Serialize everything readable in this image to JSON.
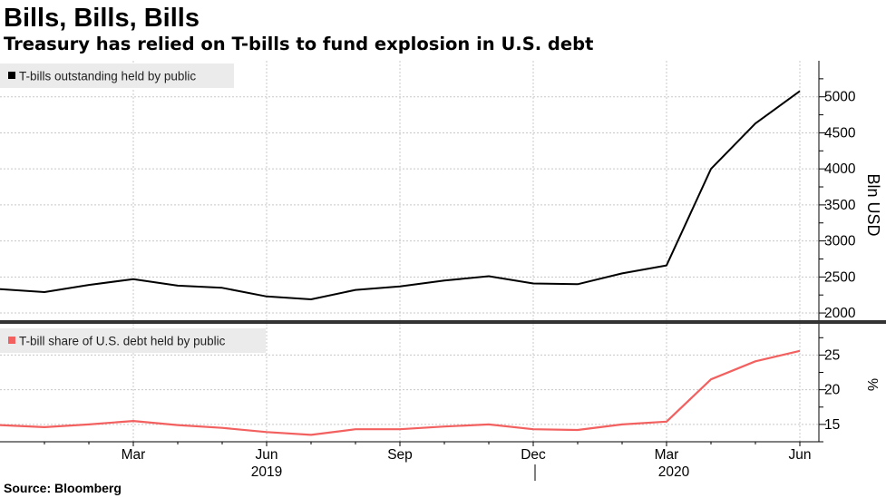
{
  "title": "Bills, Bills, Bills",
  "subtitle": "Treasury has relied on T-bills to fund explosion in U.S. debt",
  "source": "Source: Bloomberg",
  "x_ticks": [
    "Mar",
    "Jun",
    "Sep",
    "Dec",
    "Mar",
    "Jun"
  ],
  "x_years": [
    "2019",
    "2020"
  ],
  "chart_data": [
    {
      "type": "line",
      "legend": "T-bills outstanding held by public",
      "color": "#000000",
      "ylabel": "Bln USD",
      "ylim": [
        1900,
        5500
      ],
      "yticks": [
        2000,
        2500,
        3000,
        3500,
        4000,
        4500,
        5000
      ],
      "grid": true,
      "legend_position": "top-left",
      "x": [
        "2018-12",
        "2019-01",
        "2019-02",
        "2019-03",
        "2019-04",
        "2019-05",
        "2019-06",
        "2019-07",
        "2019-08",
        "2019-09",
        "2019-10",
        "2019-11",
        "2019-12",
        "2020-01",
        "2020-02",
        "2020-03",
        "2020-04",
        "2020-05",
        "2020-06"
      ],
      "values": [
        2330,
        2290,
        2390,
        2470,
        2380,
        2350,
        2230,
        2190,
        2320,
        2370,
        2450,
        2510,
        2410,
        2400,
        2550,
        2660,
        4000,
        4630,
        5080
      ]
    },
    {
      "type": "line",
      "legend": "T-bill share of U.S. debt held by public",
      "color": "#f2605f",
      "ylabel": "%",
      "ylim": [
        12.5,
        29.5
      ],
      "yticks": [
        15,
        20,
        25
      ],
      "grid": true,
      "legend_position": "top-left",
      "x": [
        "2018-12",
        "2019-01",
        "2019-02",
        "2019-03",
        "2019-04",
        "2019-05",
        "2019-06",
        "2019-07",
        "2019-08",
        "2019-09",
        "2019-10",
        "2019-11",
        "2019-12",
        "2020-01",
        "2020-02",
        "2020-03",
        "2020-04",
        "2020-05",
        "2020-06"
      ],
      "values": [
        14.9,
        14.6,
        15.0,
        15.5,
        14.9,
        14.5,
        13.9,
        13.5,
        14.3,
        14.3,
        14.7,
        15.0,
        14.3,
        14.2,
        15.0,
        15.4,
        21.5,
        24.1,
        25.6
      ]
    }
  ]
}
